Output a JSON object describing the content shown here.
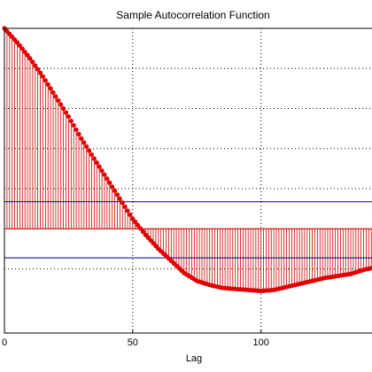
{
  "chart_data": {
    "type": "stem",
    "title": "Sample Autocorrelation Function",
    "xlabel": "Lag",
    "ylabel": "",
    "xlim": [
      0,
      145
    ],
    "ylim": [
      -0.52,
      1.0
    ],
    "x_ticks": [
      0,
      50,
      100
    ],
    "y_gridlines": [
      -0.2,
      0.0,
      0.2,
      0.4,
      0.6,
      0.8,
      1.0
    ],
    "grid": true,
    "stem_color": "#cc0000",
    "marker_color": "#e00000",
    "bound_color": "#00008b",
    "confidence_bounds": [
      0.135,
      -0.145
    ],
    "key_points": [
      [
        0,
        1.0
      ],
      [
        5,
        0.93
      ],
      [
        10,
        0.85
      ],
      [
        15,
        0.76
      ],
      [
        20,
        0.66
      ],
      [
        25,
        0.56
      ],
      [
        30,
        0.45
      ],
      [
        35,
        0.35
      ],
      [
        40,
        0.25
      ],
      [
        45,
        0.15
      ],
      [
        50,
        0.05
      ],
      [
        55,
        -0.03
      ],
      [
        60,
        -0.1
      ],
      [
        65,
        -0.16
      ],
      [
        70,
        -0.22
      ],
      [
        75,
        -0.26
      ],
      [
        80,
        -0.28
      ],
      [
        85,
        -0.295
      ],
      [
        90,
        -0.3
      ],
      [
        95,
        -0.305
      ],
      [
        100,
        -0.31
      ],
      [
        105,
        -0.305
      ],
      [
        110,
        -0.29
      ],
      [
        115,
        -0.275
      ],
      [
        120,
        -0.26
      ],
      [
        125,
        -0.245
      ],
      [
        130,
        -0.235
      ],
      [
        135,
        -0.225
      ],
      [
        140,
        -0.205
      ],
      [
        145,
        -0.19
      ]
    ]
  }
}
